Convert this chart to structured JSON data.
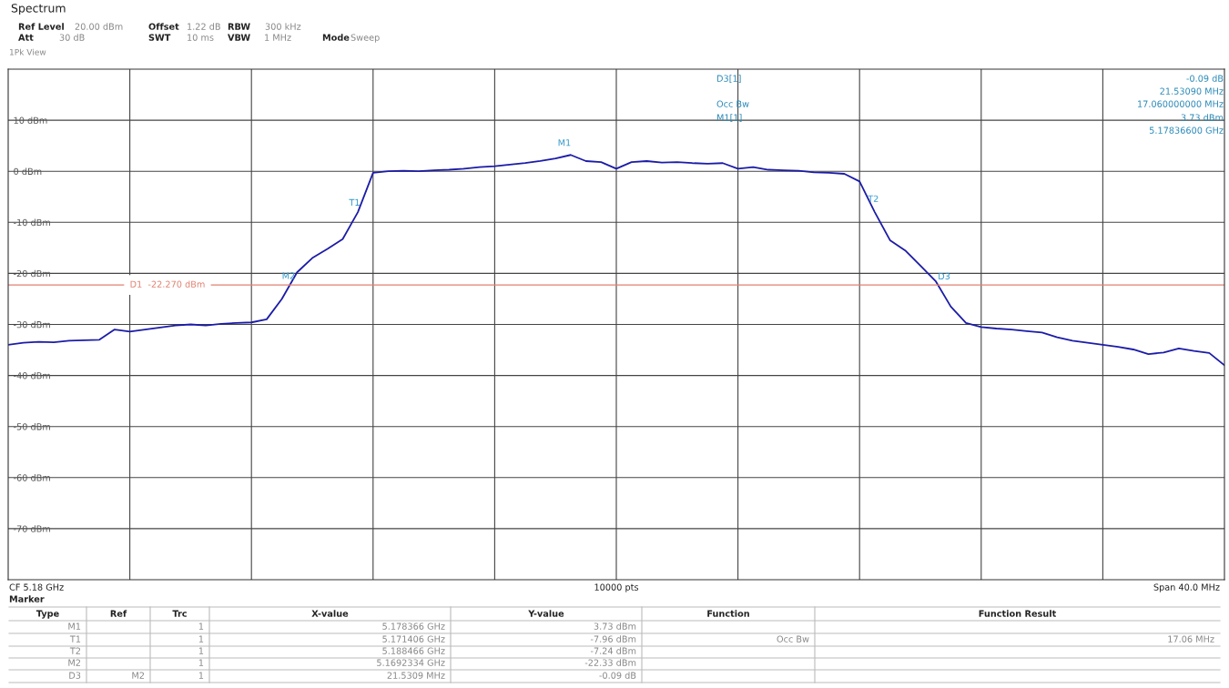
{
  "chart_data": {
    "type": "line",
    "categories": [
      null,
      null,
      null,
      null,
      null,
      null,
      null,
      null,
      null,
      null,
      null,
      null,
      null,
      null,
      null,
      null,
      null,
      null,
      null,
      null,
      null,
      null,
      null,
      null,
      null,
      null,
      null,
      null,
      null,
      null,
      null,
      null,
      null,
      null,
      null,
      null,
      null,
      null,
      null,
      null,
      null,
      null,
      null,
      null,
      null,
      null,
      null,
      null,
      null,
      null,
      null,
      null,
      null,
      null,
      null,
      null,
      null,
      null,
      null,
      null,
      null,
      null,
      null,
      null,
      null,
      null,
      null,
      null,
      null,
      null,
      null,
      null,
      null,
      null,
      null,
      null,
      null,
      null,
      null,
      null,
      null
    ],
    "series": [
      {
        "color": "#1c1ca8",
        "values": [
          -34,
          -33.6,
          -33.4,
          -33.5,
          -33.2,
          -33.1,
          -33.0,
          -31.0,
          -31.4,
          -31.0,
          -30.6,
          -30.2,
          -30.0,
          -30.2,
          -29.9,
          -29.7,
          -29.6,
          -29.0,
          -25,
          -19.8,
          -17.0,
          -15.2,
          -13.3,
          -8.0,
          -0.3,
          0,
          0.1,
          0,
          0.2,
          0.3,
          0.5,
          0.8,
          1.0,
          1.3,
          1.6,
          2.0,
          2.5,
          3.2,
          2.0,
          1.8,
          0.5,
          1.8,
          2.0,
          1.7,
          1.8,
          1.6,
          1.5,
          1.6,
          0.5,
          0.8,
          0.3,
          0.2,
          0.1,
          -0.2,
          -0.3,
          -0.5,
          -2,
          -8,
          -13.5,
          -15.5,
          -18.5,
          -21.5,
          -26.5,
          -29.7,
          -30.5,
          -30.8,
          -31.0,
          -31.3,
          -31.6,
          -32.5,
          -33.2,
          -33.6,
          -34,
          -34.4,
          -34.9,
          -35.8,
          -35.5,
          -34.7,
          -35.2,
          -35.6,
          -38
        ]
      }
    ],
    "ylim": [
      -80,
      20
    ],
    "yticks": [
      {
        "value": 10,
        "label": "10 dBm"
      },
      {
        "value": 0,
        "label": "0 dBm"
      },
      {
        "value": -10,
        "label": "-10 dBm"
      },
      {
        "value": -20,
        "label": "-20 dBm"
      },
      {
        "value": -30,
        "label": "-30 dBm"
      },
      {
        "value": -40,
        "label": "-40 dBm"
      },
      {
        "value": -50,
        "label": "-50 dBm"
      },
      {
        "value": -60,
        "label": "-60 dBm"
      },
      {
        "value": -70,
        "label": "-70 dBm"
      }
    ],
    "grid": true,
    "marker": "none",
    "line_style": "solid",
    "ref_lines": [
      {
        "axis": "y",
        "value": -22.27,
        "label": "D1  -22.270 dBm",
        "color": "#e08070"
      }
    ],
    "annotations": [
      "Spectrum",
      "Ref Level",
      "20.00 dBm",
      "Offset",
      "1.22 dB",
      "RBW",
      "300 kHz",
      "Att",
      "30 dB",
      "SWT",
      "10 ms",
      "VBW",
      "1 MHz",
      "Mode",
      "Sweep",
      "1Pk View",
      "D3[1]",
      "Occ Bw",
      "M1[1]",
      "-0.09 dB",
      "21.53090 MHz",
      "17.060000000 MHz",
      "3.73 dBm",
      "5.17836600 GHz",
      "CF 5.18 GHz",
      "10000 pts",
      "Span 40.0 MHz",
      "Marker",
      "Type",
      "Ref",
      "Trc",
      "X-value",
      "Y-value",
      "Function",
      "Function Result",
      "M1",
      "1",
      "5.178366 GHz",
      "3.73 dBm",
      "T1",
      "1",
      "5.171406 GHz",
      "-7.96 dBm",
      "Occ Bw",
      "17.06 MHz",
      "T2",
      "1",
      "5.188466 GHz",
      "-7.24 dBm",
      "M2",
      "1",
      "5.1692334 GHz",
      "-22.33 dBm",
      "D3",
      "M2",
      "1",
      "21.5309 MHz",
      "-0.09 dB",
      {
        "text": "M1",
        "y": 3.73
      },
      {
        "text": "T1",
        "y": -7.96
      },
      {
        "text": "T2",
        "y": -7.24
      },
      {
        "text": "M2",
        "y": -22.33
      },
      {
        "text": "D3",
        "y": -22.42
      }
    ]
  }
}
